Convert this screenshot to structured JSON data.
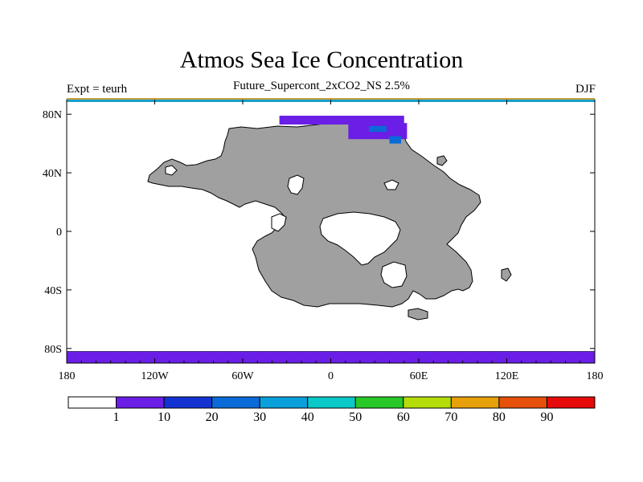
{
  "title": "Atmos Sea Ice Concentration",
  "subtitle": "Future_Supercont_2xCO2_NS 2.5%",
  "left_annotation": "Expt = teurh",
  "right_annotation": "DJF",
  "map": {
    "lon_range": [
      -180,
      180
    ],
    "lat_range": [
      -90,
      90
    ],
    "lat_ticks": [
      {
        "value": 80,
        "label": "80N"
      },
      {
        "value": 40,
        "label": "40N"
      },
      {
        "value": 0,
        "label": "0"
      },
      {
        "value": -40,
        "label": "40S"
      },
      {
        "value": -80,
        "label": "80S"
      }
    ],
    "lon_ticks": [
      {
        "value": -180,
        "label": "180"
      },
      {
        "value": -120,
        "label": "120W"
      },
      {
        "value": -60,
        "label": "60W"
      },
      {
        "value": 0,
        "label": "0"
      },
      {
        "value": 60,
        "label": "60E"
      },
      {
        "value": 120,
        "label": "120E"
      },
      {
        "value": 180,
        "label": "180"
      }
    ],
    "land_color": "#a0a0a0",
    "ocean_color": "#ffffff",
    "ice": {
      "southern_band_lat_range": [
        -90,
        -82
      ],
      "southern_band_color": "#6a1ee6",
      "northern_patches": [
        {
          "lon": [
            -35,
            50
          ],
          "lat": [
            73,
            79
          ],
          "color": "#6a1ee6"
        },
        {
          "lon": [
            12,
            52
          ],
          "lat": [
            63,
            74
          ],
          "color": "#6a1ee6"
        },
        {
          "lon": [
            26,
            38
          ],
          "lat": [
            68,
            72
          ],
          "color": "#0a6ad8"
        },
        {
          "lon": [
            40,
            48
          ],
          "lat": [
            60,
            65
          ],
          "color": "#0a6ad8"
        }
      ]
    }
  },
  "colorbar": {
    "colors": [
      "#ffffff",
      "#6a1ee6",
      "#1432d2",
      "#0a6ad8",
      "#0aa0dc",
      "#0ac8c8",
      "#28c828",
      "#b4dc0a",
      "#e6a00a",
      "#e6500a",
      "#e60a0a"
    ],
    "labels": [
      "1",
      "10",
      "20",
      "30",
      "40",
      "50",
      "60",
      "70",
      "80",
      "90"
    ]
  }
}
